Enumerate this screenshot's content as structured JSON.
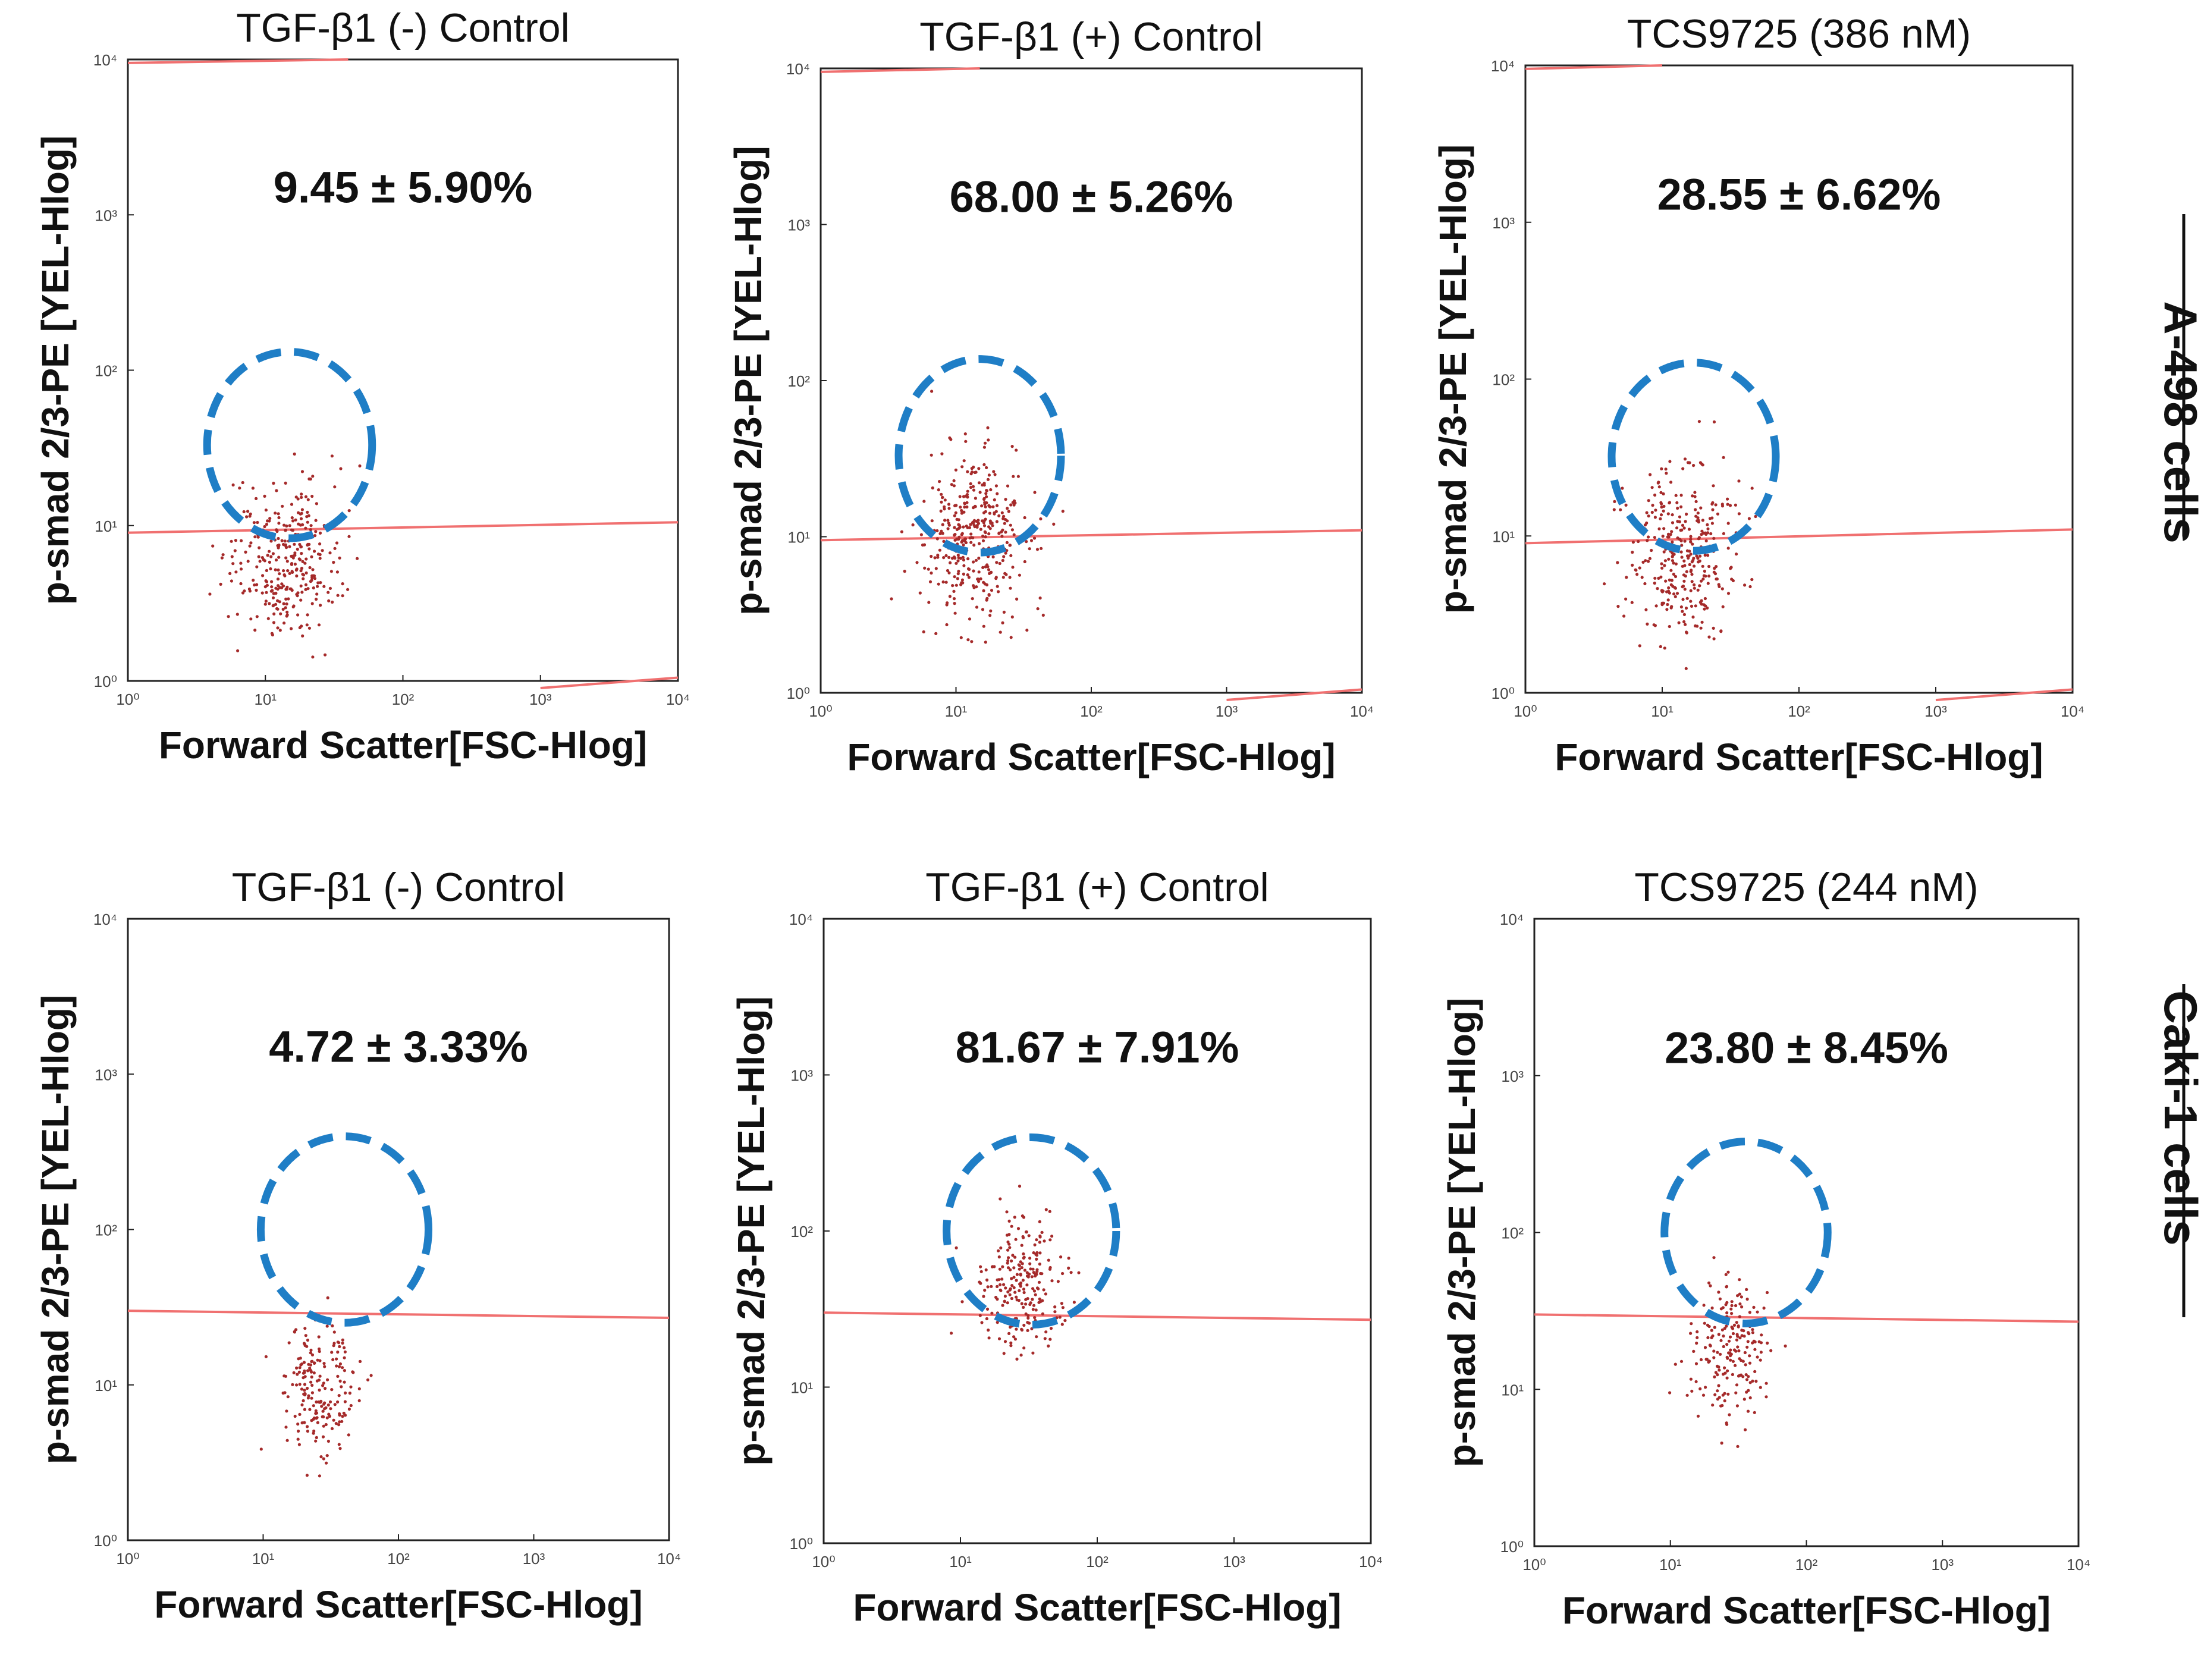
{
  "colors": {
    "dots": "#a52a2a",
    "threshold": "#f07070",
    "gate": "#1f7ec6",
    "frame": "#222222"
  },
  "row_labels": [
    "A-498 cells",
    "Caki-1 cells"
  ],
  "chart_data": [
    {
      "type": "scatter",
      "title": "TGF-β1 (-) Control",
      "percent_label": "9.45 ± 5.90%",
      "xlabel": "Forward Scatter[FSC-Hlog]",
      "ylabel": "p-smad 2/3-PE [YEL-Hlog]",
      "xscale": "log",
      "yscale": "log",
      "xlim": [
        1,
        10000
      ],
      "ylim": [
        1,
        10000
      ],
      "xticks": [
        "10⁰",
        "10¹",
        "10²",
        "10³",
        "10⁴"
      ],
      "yticks": [
        "10⁰",
        "10¹",
        "10²",
        "10³",
        "10⁴"
      ],
      "gate": {
        "cx": 15,
        "cy": 33,
        "rx_decades": 0.6,
        "ry_decades": 0.6
      },
      "threshold": [
        [
          1,
          9
        ],
        [
          10000,
          10.5
        ]
      ],
      "top_line": [
        [
          1,
          9500
        ],
        [
          40,
          10000
        ]
      ],
      "bottom_line": [
        [
          1000,
          0.9
        ],
        [
          10000,
          1.05
        ]
      ],
      "cloud": {
        "cx": 14,
        "cy": 6,
        "sx": 0.2,
        "sy": 0.25,
        "n": 320
      }
    },
    {
      "type": "scatter",
      "title": "TGF-β1 (+) Control",
      "percent_label": "68.00 ± 5.26%",
      "xlabel": "Forward Scatter[FSC-Hlog]",
      "ylabel": "p-smad 2/3-PE [YEL-Hlog]",
      "xscale": "log",
      "yscale": "log",
      "xlim": [
        1,
        10000
      ],
      "ylim": [
        1,
        10000
      ],
      "xticks": [
        "10⁰",
        "10¹",
        "10²",
        "10³",
        "10⁴"
      ],
      "yticks": [
        "10⁰",
        "10¹",
        "10²",
        "10³",
        "10⁴"
      ],
      "gate": {
        "cx": 15,
        "cy": 33,
        "rx_decades": 0.6,
        "ry_decades": 0.62
      },
      "threshold": [
        [
          1,
          9.5
        ],
        [
          10000,
          11
        ]
      ],
      "top_line": [
        [
          1,
          9500
        ],
        [
          15,
          10000
        ]
      ],
      "bottom_line": [
        [
          1000,
          0.9
        ],
        [
          10000,
          1.05
        ]
      ],
      "cloud": {
        "cx": 14,
        "cy": 10,
        "sx": 0.2,
        "sy": 0.28,
        "n": 380
      }
    },
    {
      "type": "scatter",
      "title": "TCS9725 (386 nM)",
      "percent_label": "28.55 ± 6.62%",
      "xlabel": "Forward Scatter[FSC-Hlog]",
      "ylabel": "p-smad 2/3-PE [YEL-Hlog]",
      "xscale": "log",
      "yscale": "log",
      "xlim": [
        1,
        10000
      ],
      "ylim": [
        1,
        10000
      ],
      "xticks": [
        "10⁰",
        "10¹",
        "10²",
        "10³",
        "10⁴"
      ],
      "yticks": [
        "10⁰",
        "10¹",
        "10²",
        "10³",
        "10⁴"
      ],
      "gate": {
        "cx": 17,
        "cy": 32,
        "rx_decades": 0.6,
        "ry_decades": 0.6
      },
      "threshold": [
        [
          1,
          9
        ],
        [
          10000,
          11
        ]
      ],
      "top_line": [
        [
          1,
          9500
        ],
        [
          10,
          10000
        ]
      ],
      "bottom_line": [
        [
          1000,
          0.9
        ],
        [
          10000,
          1.05
        ]
      ],
      "cloud": {
        "cx": 14,
        "cy": 8,
        "sx": 0.2,
        "sy": 0.28,
        "n": 330
      }
    },
    {
      "type": "scatter",
      "title": "TGF-β1 (-) Control",
      "percent_label": "4.72 ± 3.33%",
      "xlabel": "Forward Scatter[FSC-Hlog]",
      "ylabel": "p-smad 2/3-PE [YEL-Hlog]",
      "xscale": "log",
      "yscale": "log",
      "xlim": [
        1,
        10000
      ],
      "ylim": [
        1,
        10000
      ],
      "xticks": [
        "10⁰",
        "10¹",
        "10²",
        "10³",
        "10⁴"
      ],
      "yticks": [
        "10⁰",
        "10¹",
        "10²",
        "10³",
        "10⁴"
      ],
      "gate": {
        "cx": 40,
        "cy": 100,
        "rx_decades": 0.62,
        "ry_decades": 0.6
      },
      "threshold": [
        [
          1,
          30
        ],
        [
          10000,
          27
        ]
      ],
      "top_line": null,
      "bottom_line": null,
      "cloud": {
        "cx": 27,
        "cy": 10,
        "sx": 0.14,
        "sy": 0.22,
        "n": 200
      }
    },
    {
      "type": "scatter",
      "title": "TGF-β1 (+) Control",
      "percent_label": "81.67 ± 7.91%",
      "xlabel": "Forward Scatter[FSC-Hlog]",
      "ylabel": "p-smad 2/3-PE [YEL-Hlog]",
      "xscale": "log",
      "yscale": "log",
      "xlim": [
        1,
        10000
      ],
      "ylim": [
        1,
        10000
      ],
      "xticks": [
        "10⁰",
        "10¹",
        "10²",
        "10³",
        "10⁴"
      ],
      "yticks": [
        "10⁰",
        "10¹",
        "10²",
        "10³",
        "10⁴"
      ],
      "gate": {
        "cx": 33,
        "cy": 100,
        "rx_decades": 0.62,
        "ry_decades": 0.6
      },
      "threshold": [
        [
          1,
          30
        ],
        [
          10000,
          27
        ]
      ],
      "top_line": null,
      "bottom_line": null,
      "cloud": {
        "cx": 28,
        "cy": 45,
        "sx": 0.16,
        "sy": 0.22,
        "n": 230
      }
    },
    {
      "type": "scatter",
      "title": "TCS9725 (244 nM)",
      "percent_label": "23.80 ± 8.45%",
      "xlabel": "Forward Scatter[FSC-Hlog]",
      "ylabel": "p-smad 2/3-PE [YEL-Hlog]",
      "xscale": "log",
      "yscale": "log",
      "xlim": [
        1,
        10000
      ],
      "ylim": [
        1,
        10000
      ],
      "xticks": [
        "10⁰",
        "10¹",
        "10²",
        "10³",
        "10⁴"
      ],
      "yticks": [
        "10⁰",
        "10¹",
        "10²",
        "10³",
        "10⁴"
      ],
      "gate": {
        "cx": 36,
        "cy": 100,
        "rx_decades": 0.6,
        "ry_decades": 0.58
      },
      "threshold": [
        [
          1,
          30
        ],
        [
          10000,
          27
        ]
      ],
      "top_line": null,
      "bottom_line": null,
      "cloud": {
        "cx": 28,
        "cy": 18,
        "sx": 0.14,
        "sy": 0.22,
        "n": 200
      }
    }
  ]
}
